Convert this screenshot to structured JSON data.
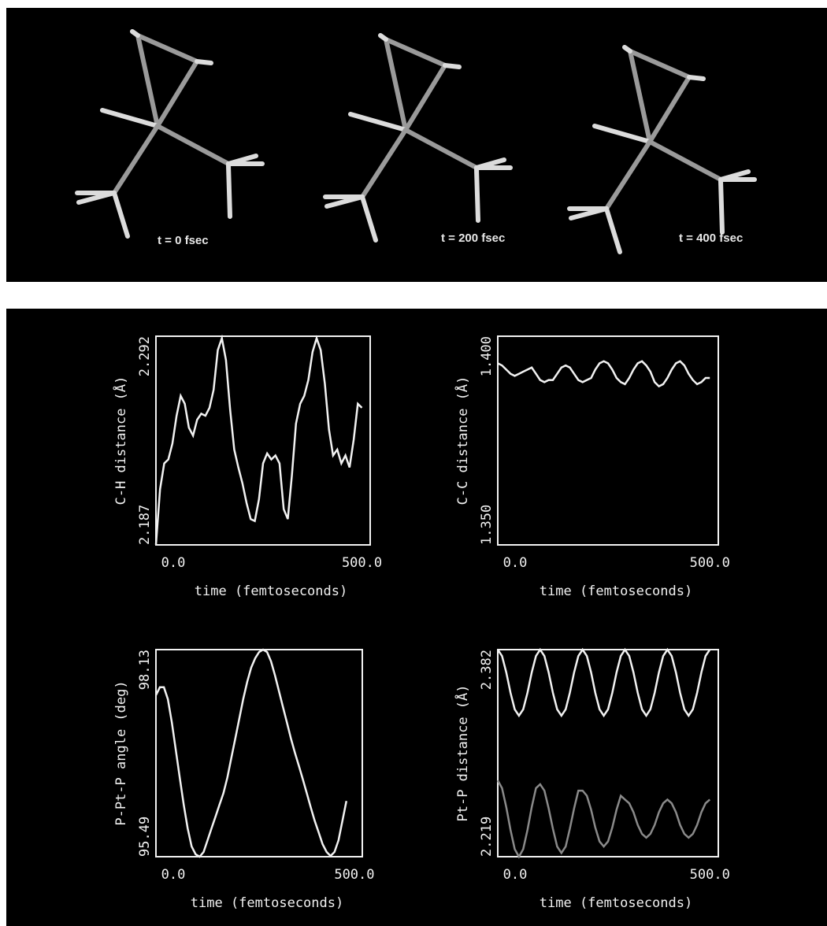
{
  "snapshots": [
    {
      "label": "t = 0 fsec"
    },
    {
      "label": "t = 200 fsec"
    },
    {
      "label": "t = 400 fsec"
    }
  ],
  "chart_data": [
    {
      "type": "line",
      "y_label": "C-H distance (Å)",
      "x_label": "time (femtoseconds)",
      "x": [
        0,
        10,
        20,
        30,
        40,
        50,
        60,
        70,
        80,
        90,
        100,
        110,
        120,
        130,
        140,
        150,
        160,
        170,
        180,
        190,
        200,
        210,
        220,
        230,
        240,
        250,
        260,
        270,
        280,
        290,
        300,
        310,
        320,
        330,
        340,
        350,
        360,
        370,
        380,
        390,
        400,
        410,
        420,
        430,
        440,
        450,
        460,
        470,
        480,
        490,
        500
      ],
      "xlim": [
        0,
        520
      ],
      "xticks": [
        {
          "value": 0,
          "label": "0.0"
        },
        {
          "value": 500,
          "label": "500.0"
        }
      ],
      "ylim": [
        2.187,
        2.292
      ],
      "yticks": [
        2.187,
        2.292
      ],
      "series": [
        {
          "color": "#f2f2f2",
          "values": [
            2.187,
            2.215,
            2.228,
            2.23,
            2.238,
            2.252,
            2.262,
            2.258,
            2.246,
            2.242,
            2.25,
            2.253,
            2.252,
            2.256,
            2.265,
            2.285,
            2.291,
            2.28,
            2.255,
            2.235,
            2.226,
            2.218,
            2.208,
            2.2,
            2.199,
            2.21,
            2.228,
            2.233,
            2.23,
            2.232,
            2.228,
            2.205,
            2.2,
            2.222,
            2.248,
            2.258,
            2.262,
            2.27,
            2.284,
            2.291,
            2.285,
            2.268,
            2.245,
            2.232,
            2.235,
            2.228,
            2.232,
            2.226,
            2.24,
            2.258,
            2.256
          ]
        }
      ]
    },
    {
      "type": "line",
      "y_label": "C-C distance (Å)",
      "x_label": "time (femtoseconds)",
      "x": [
        0,
        10,
        20,
        30,
        40,
        50,
        60,
        70,
        80,
        90,
        100,
        110,
        120,
        130,
        140,
        150,
        160,
        170,
        180,
        190,
        200,
        210,
        220,
        230,
        240,
        250,
        260,
        270,
        280,
        290,
        300,
        310,
        320,
        330,
        340,
        350,
        360,
        370,
        380,
        390,
        400,
        410,
        420,
        430,
        440,
        450,
        460,
        470,
        480,
        490,
        500
      ],
      "xlim": [
        0,
        520
      ],
      "xticks": [
        {
          "value": 0,
          "label": "0.0"
        },
        {
          "value": 500,
          "label": "500.0"
        }
      ],
      "ylim": [
        1.35,
        1.4
      ],
      "yticks": [
        {
          "value": 1.35,
          "label": "1.350"
        },
        {
          "value": 1.4,
          "label": "1.400"
        }
      ],
      "series": [
        {
          "color": "#f2f2f2",
          "values": [
            1.3935,
            1.393,
            1.392,
            1.391,
            1.3905,
            1.391,
            1.3915,
            1.392,
            1.3925,
            1.391,
            1.3895,
            1.389,
            1.3895,
            1.3895,
            1.391,
            1.3925,
            1.393,
            1.3925,
            1.391,
            1.3895,
            1.389,
            1.3895,
            1.39,
            1.392,
            1.3935,
            1.394,
            1.3935,
            1.392,
            1.39,
            1.389,
            1.3885,
            1.39,
            1.392,
            1.3935,
            1.394,
            1.393,
            1.3915,
            1.389,
            1.388,
            1.3885,
            1.39,
            1.392,
            1.3935,
            1.394,
            1.393,
            1.391,
            1.3895,
            1.3885,
            1.389,
            1.39,
            1.39
          ]
        }
      ]
    },
    {
      "type": "line",
      "y_label": "P-Pt-P angle (deg)",
      "x_label": "time (femtoseconds)",
      "x": [
        0,
        10,
        20,
        30,
        40,
        50,
        60,
        70,
        80,
        90,
        100,
        110,
        120,
        130,
        140,
        150,
        160,
        170,
        180,
        190,
        200,
        210,
        220,
        230,
        240,
        250,
        260,
        270,
        280,
        290,
        300,
        310,
        320,
        330,
        340,
        350,
        360,
        370,
        380,
        390,
        400,
        410,
        420,
        430,
        440,
        450,
        460,
        470,
        480
      ],
      "xlim": [
        0,
        520
      ],
      "xticks": [
        {
          "value": 0,
          "label": "0.0"
        },
        {
          "value": 500,
          "label": "500.0"
        }
      ],
      "ylim": [
        95.49,
        98.13
      ],
      "yticks": [
        95.49,
        98.13
      ],
      "series": [
        {
          "color": "#f2f2f2",
          "values": [
            97.55,
            97.65,
            97.65,
            97.5,
            97.2,
            96.85,
            96.5,
            96.15,
            95.85,
            95.62,
            95.52,
            95.49,
            95.55,
            95.7,
            95.85,
            96.0,
            96.15,
            96.3,
            96.5,
            96.75,
            97.0,
            97.25,
            97.5,
            97.72,
            97.9,
            98.02,
            98.1,
            98.13,
            98.1,
            97.98,
            97.8,
            97.6,
            97.4,
            97.2,
            97.0,
            96.82,
            96.65,
            96.48,
            96.3,
            96.12,
            95.95,
            95.8,
            95.65,
            95.55,
            95.5,
            95.55,
            95.7,
            95.95,
            96.2
          ]
        }
      ]
    },
    {
      "type": "line",
      "y_label": "Pt-P distance (Å)",
      "x_label": "time (femtoseconds)",
      "x": [
        0,
        10,
        20,
        30,
        40,
        50,
        60,
        70,
        80,
        90,
        100,
        110,
        120,
        130,
        140,
        150,
        160,
        170,
        180,
        190,
        200,
        210,
        220,
        230,
        240,
        250,
        260,
        270,
        280,
        290,
        300,
        310,
        320,
        330,
        340,
        350,
        360,
        370,
        380,
        390,
        400,
        410,
        420,
        430,
        440,
        450,
        460,
        470,
        480,
        490,
        500
      ],
      "xlim": [
        0,
        520
      ],
      "xticks": [
        {
          "value": 0,
          "label": "0.0"
        },
        {
          "value": 500,
          "label": "500.0"
        }
      ],
      "ylim": [
        2.219,
        2.382
      ],
      "yticks": [
        2.219,
        2.382
      ],
      "series": [
        {
          "color": "#f2f2f2",
          "values": [
            2.382,
            2.377,
            2.364,
            2.348,
            2.335,
            2.33,
            2.335,
            2.348,
            2.364,
            2.377,
            2.382,
            2.377,
            2.364,
            2.348,
            2.335,
            2.33,
            2.335,
            2.348,
            2.364,
            2.377,
            2.382,
            2.377,
            2.364,
            2.348,
            2.335,
            2.33,
            2.335,
            2.348,
            2.364,
            2.377,
            2.382,
            2.377,
            2.364,
            2.348,
            2.335,
            2.33,
            2.335,
            2.348,
            2.364,
            2.377,
            2.382,
            2.377,
            2.364,
            2.348,
            2.335,
            2.33,
            2.335,
            2.348,
            2.364,
            2.377,
            2.382
          ]
        },
        {
          "color": "#8a8a8a",
          "values": [
            2.279,
            2.273,
            2.258,
            2.24,
            2.225,
            2.219,
            2.225,
            2.24,
            2.258,
            2.273,
            2.276,
            2.271,
            2.257,
            2.241,
            2.227,
            2.222,
            2.227,
            2.241,
            2.257,
            2.271,
            2.271,
            2.267,
            2.256,
            2.242,
            2.231,
            2.227,
            2.231,
            2.242,
            2.256,
            2.267,
            2.264,
            2.261,
            2.254,
            2.244,
            2.237,
            2.234,
            2.237,
            2.244,
            2.254,
            2.261,
            2.264,
            2.261,
            2.254,
            2.244,
            2.237,
            2.234,
            2.237,
            2.244,
            2.254,
            2.261,
            2.264
          ]
        }
      ]
    }
  ]
}
